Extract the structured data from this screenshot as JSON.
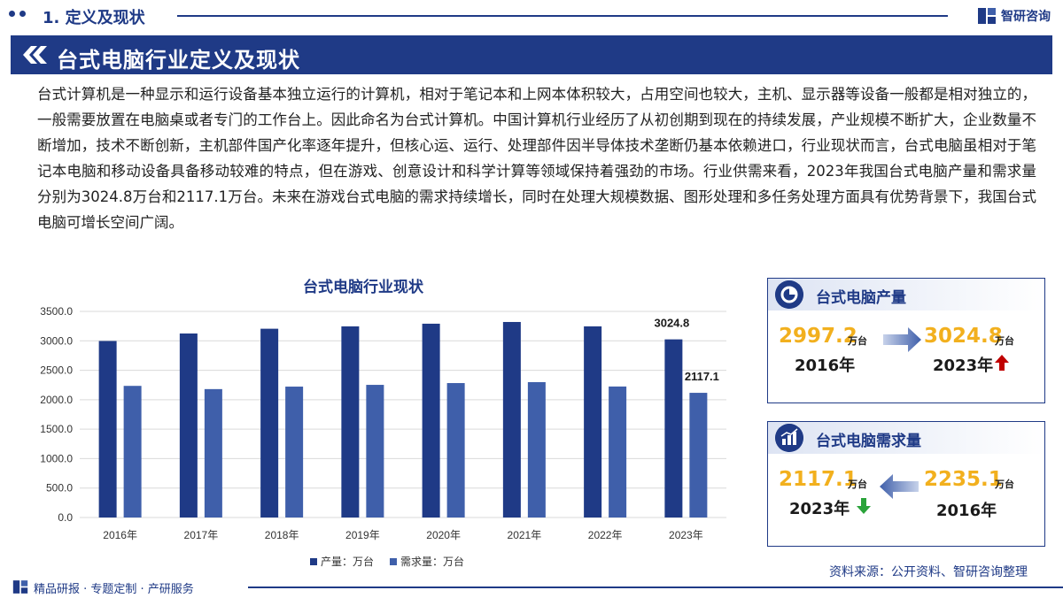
{
  "header": {
    "section_title": "1. 定义及现状",
    "brand": "智研咨询"
  },
  "banner": {
    "title": "台式电脑行业定义及现状"
  },
  "intro_text": "台式计算机是一种显示和运行设备基本独立运行的计算机，相对于笔记本和上网本体积较大，占用空间也较大，主机、显示器等设备一般都是相对独立的，一般需要放置在电脑桌或者专门的工作台上。因此命名为台式计算机。中国计算机行业经历了从初创期到现在的持续发展，产业规模不断扩大，企业数量不断增加，技术不断创新，主机部件国产化率逐年提升，但核心运、运行、处理部件因半导体技术垄断仍基本依赖进口，行业现状而言，台式电脑虽相对于笔记本电脑和移动设备具备移动较难的特点，但在游戏、创意设计和科学计算等领域保持着强劲的市场。行业供需来看，2023年我国台式电脑产量和需求量分别为3024.8万台和2117.1万台。未来在游戏台式电脑的需求持续增长，同时在处理大规模数据、图形处理和多任务处理方面具有优势背景下，我国台式电脑可增长空间广阔。",
  "chart_data": {
    "type": "bar",
    "title": "台式电脑行业现状",
    "categories": [
      "2016年",
      "2017年",
      "2018年",
      "2019年",
      "2020年",
      "2021年",
      "2022年",
      "2023年"
    ],
    "series": [
      {
        "name": "产量：万台",
        "color": "#1f3a86",
        "values": [
          2997.2,
          3124.5,
          3205.4,
          3245.6,
          3290.8,
          3320.1,
          3245.9,
          3024.8
        ]
      },
      {
        "name": "需求量：万台",
        "color": "#3f5faa",
        "values": [
          2235.1,
          2180.3,
          2222.6,
          2252.4,
          2282.7,
          2298.5,
          2224.3,
          2117.1
        ]
      }
    ],
    "ylim": [
      0,
      3500
    ],
    "yticks": [
      "0.0",
      "500.0",
      "1000.0",
      "1500.0",
      "2000.0",
      "2500.0",
      "3000.0",
      "3500.0"
    ],
    "data_labels": [
      {
        "series": 0,
        "index": 7,
        "text": "3024.8"
      },
      {
        "series": 1,
        "index": 7,
        "text": "2117.1"
      }
    ],
    "grid": true,
    "legend": "bottom"
  },
  "source": "资料来源：公开资料、智研咨询整理",
  "footer": {
    "text": "精品研报 · 专题定制 · 产研服务"
  },
  "card_production": {
    "title": "台式电脑产量",
    "from_value": "2997.2",
    "from_unit": "万台",
    "from_year": "2016年",
    "to_value": "3024.8",
    "to_unit": "万台",
    "to_year": "2023年",
    "trend": "up",
    "trend_color": "#c00000"
  },
  "card_demand": {
    "title": "台式电脑需求量",
    "to_value": "2117.1",
    "to_unit": "万台",
    "to_year": "2023年",
    "from_value": "2235.1",
    "from_unit": "万台",
    "from_year": "2016年",
    "trend": "down",
    "trend_color": "#2aa33a"
  },
  "colors": {
    "primary": "#1f3a86",
    "accent": "#f2b01e"
  }
}
